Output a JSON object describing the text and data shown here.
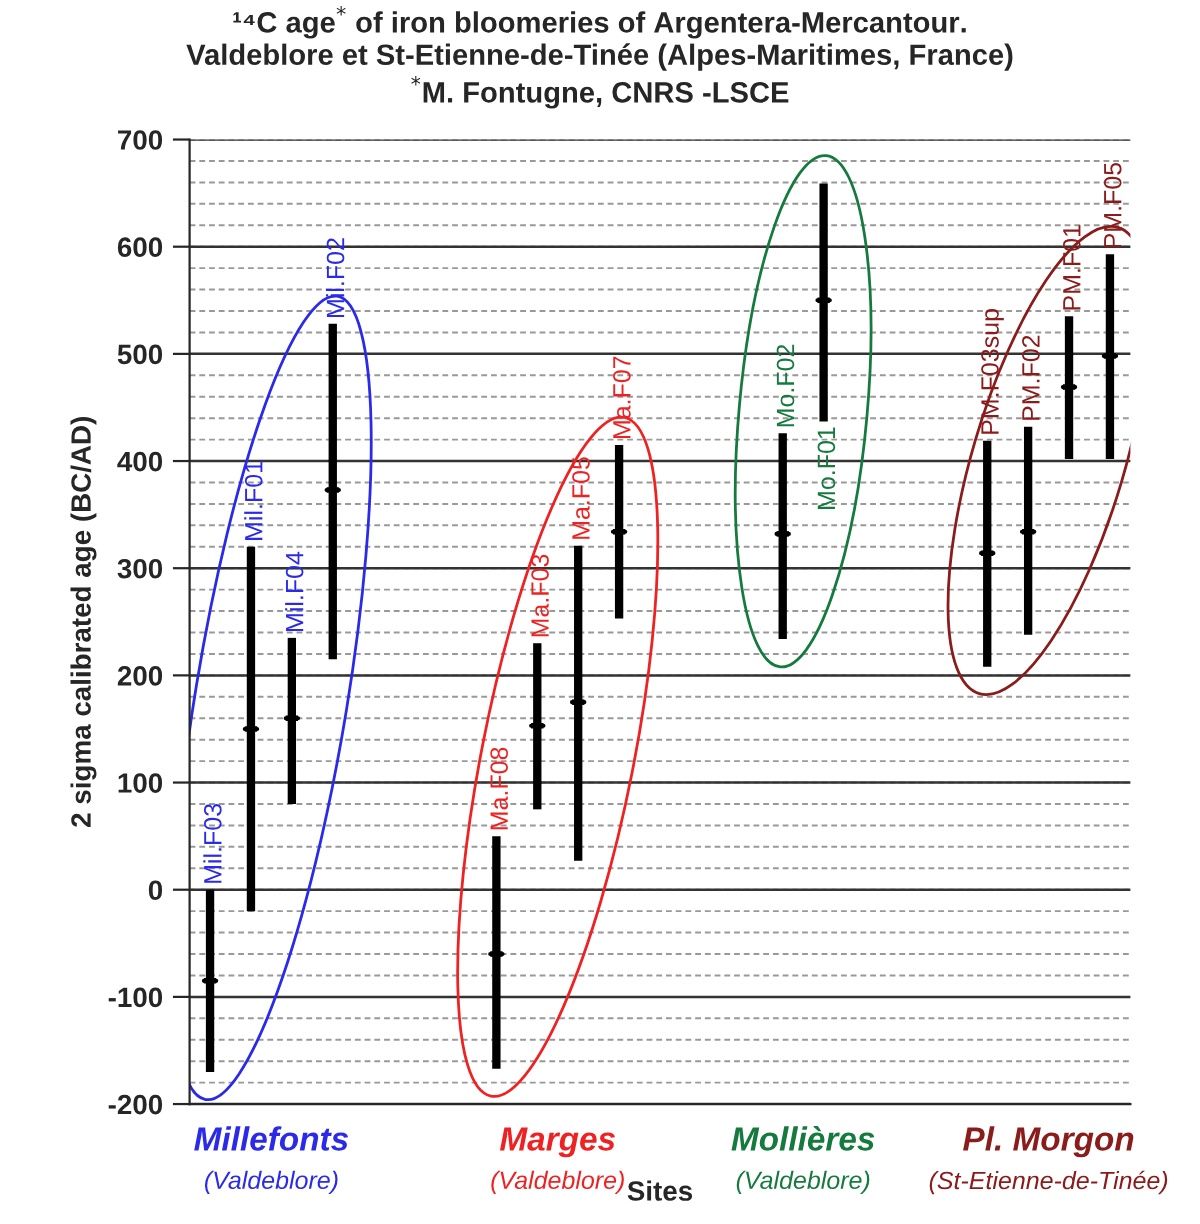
{
  "chart_data": {
    "type": "box",
    "title": "¹⁴C age$^{*}$ of iron bloomeries of Argentera-Mercantour.\nValdeblore et St-Etienne-de-Tinée (Alpes-Maritimes, France)\n$^{*}$M. Fontugne, CNRS -LSCE",
    "xlabel": "Sites",
    "ylabel": "2 sigma calibrated age (BC/AD)",
    "categories": [
      null,
      null,
      null,
      null,
      null,
      null,
      null,
      null,
      null,
      null,
      null,
      null,
      null,
      null,
      null,
      null,
      null,
      null,
      null,
      null,
      null,
      null,
      null
    ],
    "series": [
      {
        "color": "#000000",
        "value_labels": [
          "Mil.F03",
          "Mil.F01",
          "Mil.F04",
          "Mil.F02",
          null,
          null,
          null,
          null,
          null,
          null,
          null,
          null,
          null,
          null,
          null,
          null,
          null,
          null,
          null,
          null,
          null,
          null,
          null
        ],
        "boxes": [
          {
            "low": -170,
            "q1": -85,
            "median": -85,
            "q3": -85,
            "high": 0
          },
          {
            "low": -20,
            "q1": 150,
            "median": 150,
            "q3": 150,
            "high": 320
          },
          {
            "low": 80,
            "q1": 160,
            "median": 160,
            "q3": 160,
            "high": 235
          },
          {
            "low": 215,
            "q1": 373,
            "median": 373,
            "q3": 373,
            "high": 528
          },
          null,
          null,
          null,
          null,
          null,
          null,
          null,
          null,
          null,
          null,
          null,
          null,
          null,
          null,
          null,
          null,
          null,
          null,
          null
        ]
      },
      {
        "color": "#000000",
        "value_labels": [
          null,
          null,
          null,
          null,
          null,
          null,
          null,
          "Ma.F08",
          "Ma.F03",
          "Ma.F05",
          "Ma.F07",
          null,
          null,
          null,
          null,
          null,
          null,
          null,
          null,
          null,
          null,
          null,
          null
        ],
        "boxes": [
          null,
          null,
          null,
          null,
          null,
          null,
          null,
          {
            "low": -167,
            "q1": -60,
            "median": -60,
            "q3": -60,
            "high": 50
          },
          {
            "low": 75,
            "q1": 153,
            "median": 153,
            "q3": 153,
            "high": 230
          },
          {
            "low": 27,
            "q1": 175,
            "median": 175,
            "q3": 175,
            "high": 321
          },
          {
            "low": 253,
            "q1": 334,
            "median": 334,
            "q3": 334,
            "high": 415
          },
          null,
          null,
          null,
          null,
          null,
          null,
          null,
          null,
          null,
          null,
          null,
          null
        ]
      },
      {
        "color": "#000000",
        "value_labels": [
          null,
          null,
          null,
          null,
          null,
          null,
          null,
          null,
          null,
          null,
          null,
          null,
          null,
          null,
          "Mo.F02",
          "Mo.F01",
          null,
          null,
          null,
          null,
          null,
          null,
          null
        ],
        "boxes": [
          null,
          null,
          null,
          null,
          null,
          null,
          null,
          null,
          null,
          null,
          null,
          null,
          null,
          null,
          {
            "low": 234,
            "q1": 332,
            "median": 332,
            "q3": 332,
            "high": 426
          },
          {
            "low": 437,
            "q1": 550,
            "median": 550,
            "q3": 550,
            "high": 659
          },
          null,
          null,
          null,
          null,
          null,
          null,
          null
        ]
      },
      {
        "color": "#000000",
        "value_labels": [
          null,
          null,
          null,
          null,
          null,
          null,
          null,
          null,
          null,
          null,
          null,
          null,
          null,
          null,
          null,
          null,
          null,
          null,
          null,
          "PM.F03sup",
          "PM.F02",
          "PM.F01",
          "PM.F05"
        ],
        "boxes": [
          null,
          null,
          null,
          null,
          null,
          null,
          null,
          null,
          null,
          null,
          null,
          null,
          null,
          null,
          null,
          null,
          null,
          null,
          null,
          {
            "low": 208,
            "q1": 314,
            "median": 314,
            "q3": 314,
            "high": 419
          },
          {
            "low": 238,
            "q1": 334,
            "median": 334,
            "q3": 334,
            "high": 432
          },
          {
            "low": 402,
            "q1": 469,
            "median": 469,
            "q3": 469,
            "high": 535
          },
          {
            "low": 402,
            "q1": 498,
            "median": 498,
            "q3": 498,
            "high": 593
          }
        ]
      }
    ],
    "ylim": [
      -200,
      700
    ],
    "yticks": [
      -200,
      -100,
      0,
      100,
      200,
      300,
      400,
      500,
      600,
      700
    ],
    "annotations": [
      "Millefonts\n(Valdeblore)",
      "Marges\n(Valdeblore)",
      "Mollières\n(Valdeblore)",
      "Pl. Morgon\n(St-Etienne-de-Tinée)"
    ],
    "grid": "y",
    "legend": false
  }
}
